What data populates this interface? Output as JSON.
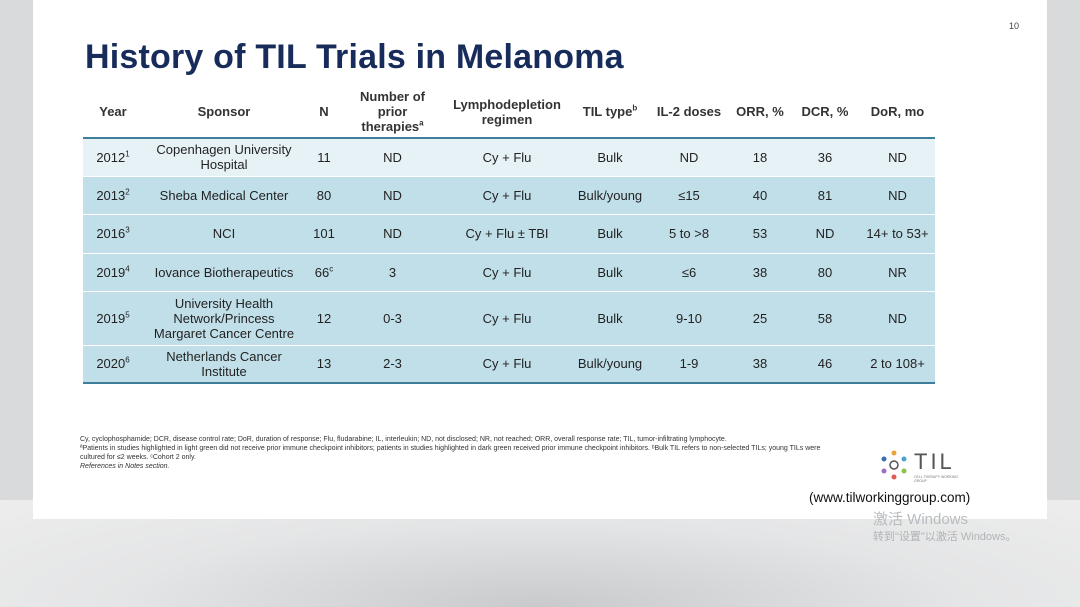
{
  "slide": {
    "page_number": "10",
    "title": "History of TIL Trials in Melanoma"
  },
  "table": {
    "headers": {
      "year": "Year",
      "sponsor": "Sponsor",
      "n": "N",
      "prior": "Number of prior therapies",
      "prior_sup": "a",
      "lympho": "Lymphodepletion regimen",
      "til_type": "TIL type",
      "til_type_sup": "b",
      "il2": "IL-2 doses",
      "orr": "ORR, %",
      "dcr": "DCR, %",
      "dor": "DoR, mo"
    },
    "rows": [
      {
        "shade": "light",
        "year": "2012",
        "year_sup": "1",
        "sponsor": "Copenhagen University Hospital",
        "n": "11",
        "n_sup": "",
        "prior": "ND",
        "lympho": "Cy + Flu",
        "til_type": "Bulk",
        "il2": "ND",
        "orr": "18",
        "dcr": "36",
        "dor": "ND"
      },
      {
        "shade": "dark",
        "year": "2013",
        "year_sup": "2",
        "sponsor": "Sheba Medical Center",
        "n": "80",
        "n_sup": "",
        "prior": "ND",
        "lympho": "Cy + Flu",
        "til_type": "Bulk/young",
        "il2": "≤15",
        "orr": "40",
        "dcr": "81",
        "dor": "ND"
      },
      {
        "shade": "dark",
        "year": "2016",
        "year_sup": "3",
        "sponsor": "NCI",
        "n": "101",
        "n_sup": "",
        "prior": "ND",
        "lympho": "Cy + Flu ± TBI",
        "til_type": "Bulk",
        "il2": "5 to >8",
        "orr": "53",
        "dcr": "ND",
        "dor": "14+ to 53+"
      },
      {
        "shade": "dark",
        "year": "2019",
        "year_sup": "4",
        "sponsor": "Iovance Biotherapeutics",
        "n": "66",
        "n_sup": "c",
        "prior": "3",
        "lympho": "Cy + Flu",
        "til_type": "Bulk",
        "il2": "≤6",
        "orr": "38",
        "dcr": "80",
        "dor": "NR"
      },
      {
        "shade": "dark",
        "year": "2019",
        "year_sup": "5",
        "sponsor": "University Health Network/Princess Margaret Cancer Centre",
        "n": "12",
        "n_sup": "",
        "prior": "0-3",
        "lympho": "Cy + Flu",
        "til_type": "Bulk",
        "il2": "9-10",
        "orr": "25",
        "dcr": "58",
        "dor": "ND"
      },
      {
        "shade": "dark",
        "year": "2020",
        "year_sup": "6",
        "sponsor": "Netherlands Cancer Institute",
        "n": "13",
        "n_sup": "",
        "prior": "2-3",
        "lympho": "Cy + Flu",
        "til_type": "Bulk/young",
        "il2": "1-9",
        "orr": "38",
        "dcr": "46",
        "dor": "2 to 108+"
      }
    ]
  },
  "footnotes": {
    "line1": "Cy, cyclophosphamide; DCR, disease control rate; DoR, duration of response; Flu, fludarabine; IL, interleukin; ND, not disclosed; NR, not reached; ORR, overall response rate; TIL, tumor-infiltrating lymphocyte.",
    "line2": "ªPatients in studies highlighted in light green did not receive prior immune checkpoint inhibitors; patients in studies highlighted in dark green received prior immune checkpoint inhibitors. ᵇBulk TIL refers to non-selected TILs; young TILs were cultured for ≤2 weeks. ᶜCohort 2 only.",
    "line3": "References in Notes section."
  },
  "logo": {
    "text": "TIL",
    "subtext": "CELL THERAPY WORKING GROUP"
  },
  "website": "(www.tilworkinggroup.com)",
  "watermark": {
    "line1": "激活 Windows",
    "line2": "转到\"设置\"以激活 Windows。"
  },
  "colors": {
    "title": "#172c5a",
    "row_light": "#e7f2f7",
    "row_dark": "#c1dfe9",
    "rule": "#3d7f9a"
  }
}
